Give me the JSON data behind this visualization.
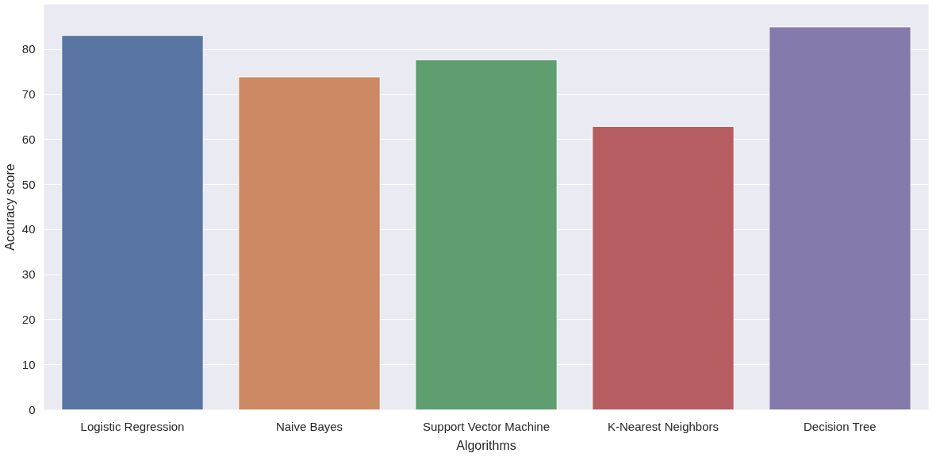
{
  "chart_data": {
    "type": "bar",
    "xlabel": "Algorithms",
    "ylabel": "Accuracy score",
    "categories": [
      "Logistic Regression",
      "Naive Bayes",
      "Support Vector Machine",
      "K-Nearest Neighbors",
      "Decision Tree"
    ],
    "values": [
      83.1,
      73.9,
      77.7,
      62.9,
      85.0
    ],
    "colors": [
      "#5975a4",
      "#cc8963",
      "#5f9e6e",
      "#b55d60",
      "#857aab"
    ],
    "ylim": [
      0,
      90
    ],
    "yticks": [
      0,
      10,
      20,
      30,
      40,
      50,
      60,
      70,
      80
    ],
    "grid": "y"
  }
}
